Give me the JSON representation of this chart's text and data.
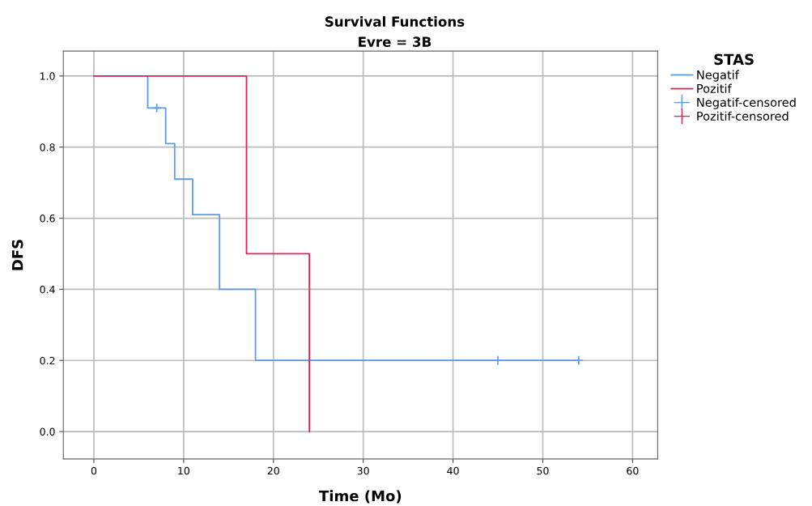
{
  "chart_data": {
    "type": "step",
    "title": "Survival Functions",
    "subtitle": "Evre = 3B",
    "xlabel": "Time (Mo)",
    "ylabel": "DFS",
    "legend_title": "STAS",
    "series": [
      {
        "name": "Negatif",
        "color": "#5b9bea",
        "x": [
          0,
          6,
          8,
          9,
          11,
          14,
          18,
          54
        ],
        "values": [
          1.0,
          0.91,
          0.81,
          0.71,
          0.61,
          0.4,
          0.2,
          0.2
        ]
      },
      {
        "name": "Pozitif",
        "color": "#e0245a",
        "x": [
          0,
          17,
          24
        ],
        "values": [
          1.0,
          0.5,
          0.0
        ]
      },
      {
        "name": "Negatif-censored",
        "type": "scatter",
        "marker": "cross",
        "color": "#5b9bea",
        "x": [
          7,
          45,
          54
        ],
        "values": [
          0.91,
          0.2,
          0.2
        ]
      },
      {
        "name": "Pozitif-censored",
        "type": "scatter",
        "marker": "cross",
        "color": "#e0245a"
      }
    ],
    "xlim": [
      -3.4,
      62.8
    ],
    "xticks": [
      0,
      10,
      20,
      30,
      40,
      50,
      60
    ],
    "ylim": [
      -0.077,
      1.07
    ],
    "yticks": [
      {
        "value": 0,
        "label": "0.0"
      },
      {
        "value": 0.2,
        "label": "0.2"
      },
      {
        "value": 0.4,
        "label": "0.4"
      },
      {
        "value": 0.6,
        "label": "0.6"
      },
      {
        "value": 0.8,
        "label": "0.8"
      },
      {
        "value": 1.0,
        "label": "1.0"
      }
    ],
    "grid": true,
    "legend": "top right"
  }
}
